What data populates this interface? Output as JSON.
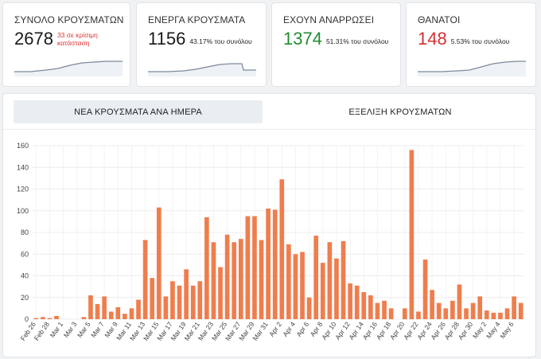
{
  "stats": [
    {
      "title": "ΣΥΝΟΛΟ ΚΡΟΥΣΜΑΤΩΝ",
      "value": "2678",
      "sub": "33 σε κρίσιμη κατάσταση",
      "value_color": "#1a1a1a"
    },
    {
      "title": "ΕΝΕΡΓΑ ΚΡΟΥΣΜΑΤΑ",
      "value": "1156",
      "sub": "43.17% του συνόλου",
      "value_color": "#1a1a1a"
    },
    {
      "title": "ΕΧΟΥΝ ΑΝΑΡΡΩΣΕΙ",
      "value": "1374",
      "sub": "51.31% του συνόλου",
      "value_color": "#1e8e2e"
    },
    {
      "title": "ΘΑΝΑΤΟΙ",
      "value": "148",
      "sub": "5.53% του συνόλου",
      "value_color": "#d33030"
    }
  ],
  "tabs": {
    "daily": "ΝΕΑ ΚΡΟΥΣΜΑΤΑ ΑΝΑ ΗΜΕΡΑ",
    "evolution": "ΕΞΕΛΙΞΗ ΚΡΟΥΣΜΑΤΩΝ"
  },
  "colors": {
    "bar": "#ef7d4d",
    "spark": "#7d8a9c",
    "grid": "#ececec"
  },
  "chart_data": {
    "type": "bar",
    "title": "",
    "xlabel": "",
    "ylabel": "",
    "ylim": [
      0,
      160
    ],
    "yticks": [
      0,
      20,
      40,
      60,
      80,
      100,
      120,
      140,
      160
    ],
    "tick_labels": [
      "Feb 26",
      "Feb 28",
      "Mar 1",
      "Mar 3",
      "Mar 5",
      "Mar 7",
      "Mar 9",
      "Mar 11",
      "Mar 13",
      "Mar 15",
      "Mar 17",
      "Mar 19",
      "Mar 21",
      "Mar 23",
      "Mar 25",
      "Mar 27",
      "Mar 29",
      "Mar 31",
      "Apr 2",
      "Apr 4",
      "Apr 6",
      "Apr 8",
      "Apr 10",
      "Apr 12",
      "Apr 14",
      "Apr 16",
      "Apr 18",
      "Apr 20",
      "Apr 22",
      "Apr 24",
      "Apr 26",
      "Apr 28",
      "Apr 30",
      "May 2",
      "May 4",
      "May 6"
    ],
    "tick_indices": [
      0,
      2,
      4,
      6,
      8,
      10,
      12,
      14,
      16,
      18,
      20,
      22,
      24,
      26,
      28,
      30,
      32,
      34,
      36,
      38,
      40,
      42,
      44,
      46,
      48,
      50,
      52,
      54,
      56,
      58,
      60,
      62,
      64,
      66,
      68,
      70
    ],
    "values": [
      1,
      2,
      1,
      3,
      0,
      0,
      0,
      2,
      22,
      14,
      21,
      7,
      11,
      5,
      10,
      18,
      73,
      38,
      103,
      21,
      35,
      31,
      46,
      31,
      35,
      94,
      71,
      48,
      78,
      71,
      74,
      95,
      95,
      73,
      102,
      101,
      129,
      69,
      60,
      62,
      20,
      77,
      52,
      71,
      56,
      72,
      33,
      31,
      25,
      22,
      15,
      17,
      10,
      0,
      10,
      156,
      7,
      55,
      27,
      15,
      10,
      17,
      32,
      10,
      15,
      21,
      8,
      6,
      6,
      10,
      21,
      15
    ]
  }
}
